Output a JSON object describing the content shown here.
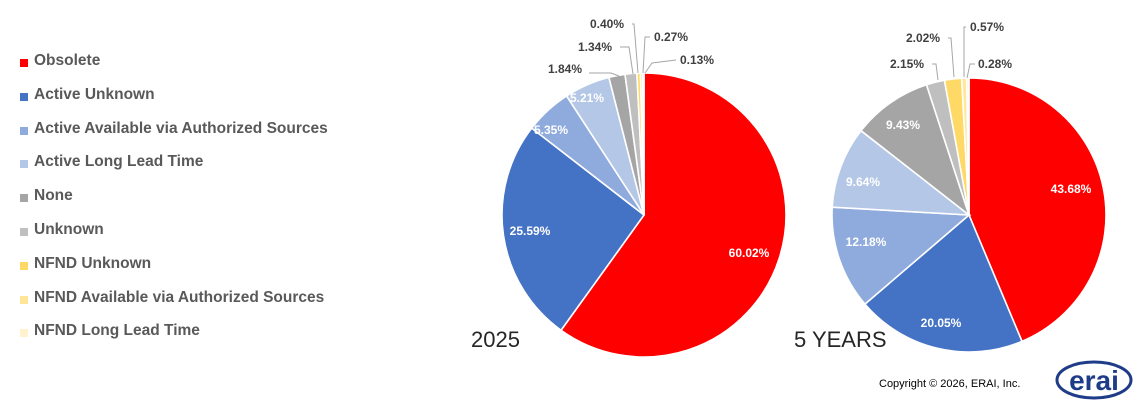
{
  "legend": [
    {
      "label": "Obsolete",
      "color": "#FF0000"
    },
    {
      "label": "Active Unknown",
      "color": "#4472C4"
    },
    {
      "label": "Active Available via Authorized Sources",
      "color": "#8FAADC"
    },
    {
      "label": "Active Long Lead Time",
      "color": "#B4C7E7"
    },
    {
      "label": "None",
      "color": "#A5A5A5"
    },
    {
      "label": "Unknown",
      "color": "#BFBFBF"
    },
    {
      "label": "NFND Unknown",
      "color": "#FFD966"
    },
    {
      "label": "NFND Available via Authorized Sources",
      "color": "#FFE699"
    },
    {
      "label": "NFND Long Lead Time",
      "color": "#FFF2CC"
    }
  ],
  "chart_data": [
    {
      "type": "pie",
      "title": "2025",
      "categories": [
        "Obsolete",
        "Active Unknown",
        "Active Available via Authorized Sources",
        "Active Long Lead Time",
        "None",
        "Unknown",
        "NFND Unknown",
        "NFND Available via Authorized Sources",
        "NFND Long Lead Time"
      ],
      "values": [
        60.02,
        25.59,
        5.35,
        5.21,
        1.84,
        1.34,
        0.4,
        0.27,
        0.13
      ],
      "labels": [
        "60.02%",
        "25.59%",
        "5.35%",
        "5.21%",
        "1.84%",
        "1.34%",
        "0.40%",
        "0.27%",
        "0.13%"
      ],
      "colors": [
        "#FF0000",
        "#4472C4",
        "#8FAADC",
        "#B4C7E7",
        "#A5A5A5",
        "#BFBFBF",
        "#FFD966",
        "#FFE699",
        "#FFF2CC"
      ]
    },
    {
      "type": "pie",
      "title": "5 YEARS",
      "categories": [
        "Obsolete",
        "Active Unknown",
        "Active Available via Authorized Sources",
        "Active Long Lead Time",
        "None",
        "Unknown",
        "NFND Unknown",
        "NFND Available via Authorized Sources",
        "NFND Long Lead Time"
      ],
      "values": [
        43.68,
        20.05,
        12.18,
        9.64,
        9.43,
        2.15,
        2.02,
        0.57,
        0.28
      ],
      "labels": [
        "43.68%",
        "20.05%",
        "12.18%",
        "9.64%",
        "9.43%",
        "2.15%",
        "2.02%",
        "0.57%",
        "0.28%"
      ],
      "colors": [
        "#FF0000",
        "#4472C4",
        "#8FAADC",
        "#B4C7E7",
        "#A5A5A5",
        "#BFBFBF",
        "#FFD966",
        "#FFE699",
        "#FFF2CC"
      ]
    }
  ],
  "footer": {
    "copyright": "Copyright © 2026, ERAI, Inc.",
    "logo_text": "erai"
  }
}
